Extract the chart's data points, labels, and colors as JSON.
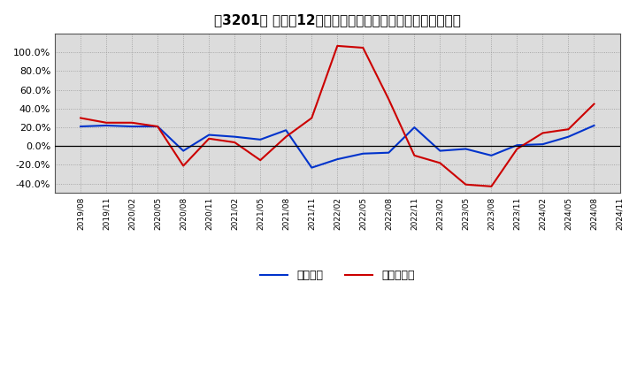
{
  "title": "［3201］ 利益だ12か月移動合計の対前年同期増減率の推移",
  "x_labels": [
    "2019/08",
    "2019/11",
    "2020/02",
    "2020/05",
    "2020/08",
    "2020/11",
    "2021/02",
    "2021/05",
    "2021/08",
    "2021/11",
    "2022/02",
    "2022/05",
    "2022/08",
    "2022/11",
    "2023/02",
    "2023/05",
    "2023/08",
    "2023/11",
    "2024/02",
    "2024/05",
    "2024/08",
    "2024/11"
  ],
  "blue_values": [
    0.21,
    0.22,
    0.21,
    0.21,
    -0.05,
    0.12,
    0.1,
    0.07,
    0.17,
    -0.23,
    -0.14,
    -0.08,
    -0.07,
    0.2,
    -0.05,
    -0.03,
    -0.1,
    0.01,
    0.02,
    0.1,
    0.22,
    null
  ],
  "red_values": [
    0.3,
    0.25,
    0.25,
    0.21,
    -0.21,
    0.08,
    0.04,
    -0.15,
    0.1,
    0.3,
    1.07,
    1.05,
    0.5,
    -0.1,
    -0.18,
    -0.41,
    -0.43,
    -0.03,
    0.14,
    0.18,
    0.45,
    null
  ],
  "ylim": [
    -0.5,
    1.2
  ],
  "yticks": [
    -0.4,
    -0.2,
    0.0,
    0.2,
    0.4,
    0.6,
    0.8,
    1.0
  ],
  "blue_color": "#0033cc",
  "red_color": "#cc0000",
  "legend_blue": "経常利益",
  "legend_red": "当期純利益",
  "bg_color": "#ffffff",
  "plot_bg_color": "#dcdcdc",
  "grid_color": "#999999",
  "title_fontsize": 11
}
